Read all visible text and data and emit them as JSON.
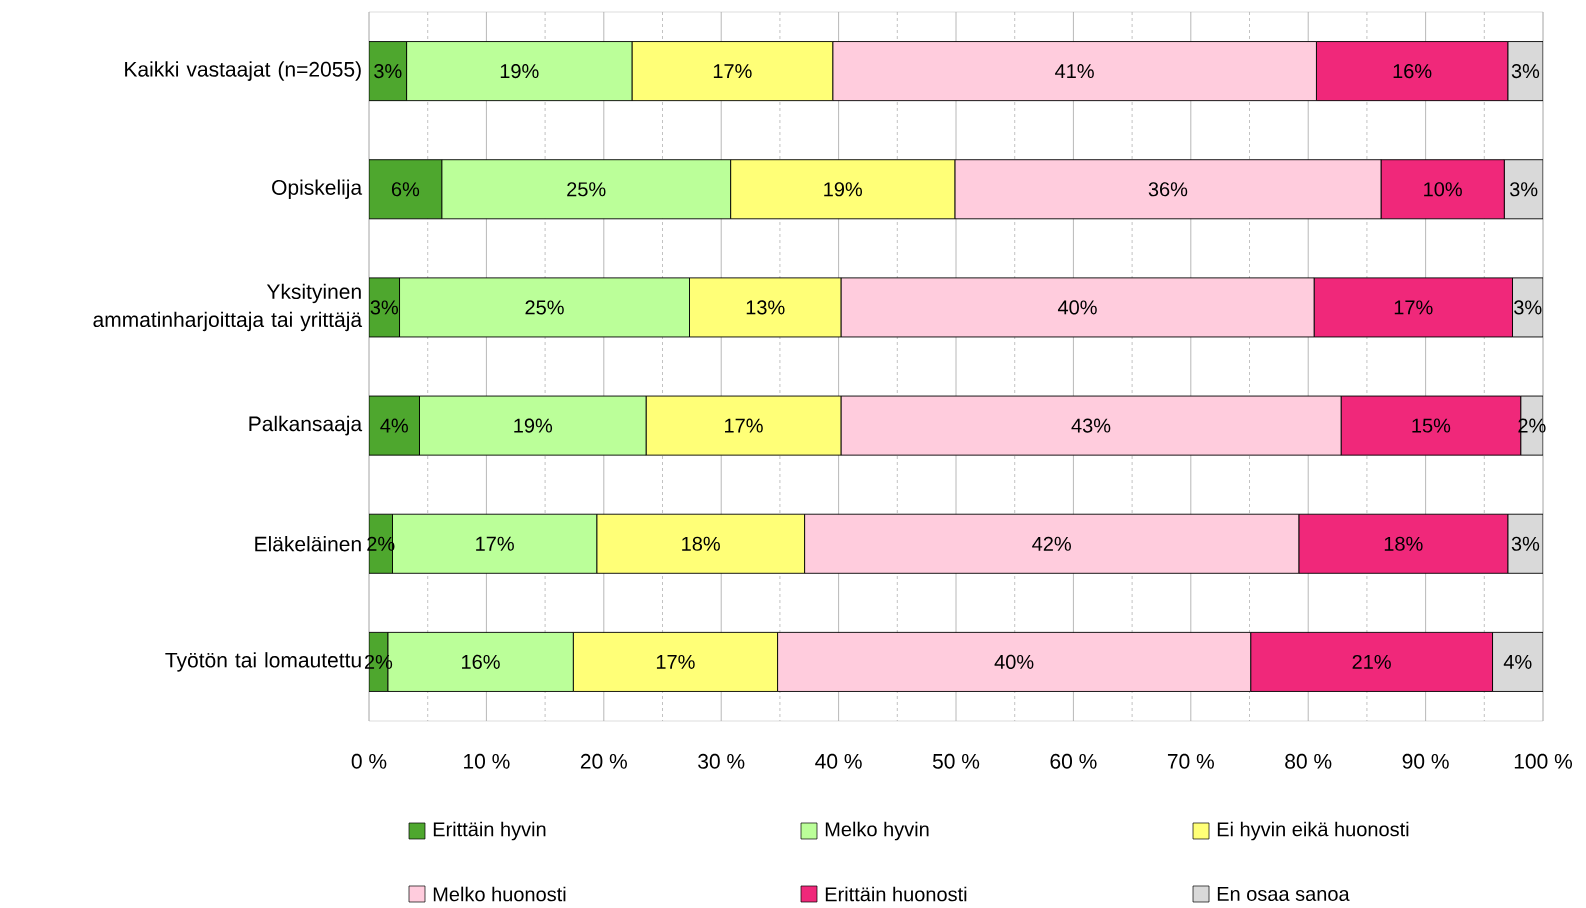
{
  "chart_data": {
    "type": "bar",
    "orientation": "horizontal",
    "stacked": true,
    "categories": [
      "Kaikki vastaajat (n=2055)",
      "Opiskelija",
      "Yksityinen ammatinharjoittaja tai yrittäjä",
      "Palkansaaja",
      "Eläkeläinen",
      "Työtön tai lomautettu"
    ],
    "series": [
      {
        "name": "Erittäin hyvin",
        "color": "#4ea72e",
        "values": [
          3.2,
          6.2,
          2.6,
          4.3,
          2.0,
          1.6
        ],
        "value_labels": [
          "3%",
          "6%",
          "3%",
          "4%",
          "2%",
          "2%"
        ]
      },
      {
        "name": "Melko hyvin",
        "color": "#bbff99",
        "values": [
          19.2,
          24.6,
          24.7,
          19.3,
          17.4,
          15.8
        ],
        "value_labels": [
          "19%",
          "25%",
          "25%",
          "19%",
          "17%",
          "16%"
        ]
      },
      {
        "name": "Ei hyvin eikä huonosti",
        "color": "#ffff77",
        "values": [
          17.1,
          19.1,
          12.9,
          16.6,
          17.7,
          17.4
        ],
        "value_labels": [
          "17%",
          "19%",
          "13%",
          "17%",
          "18%",
          "17%"
        ]
      },
      {
        "name": "Melko huonosti",
        "color": "#ffccdd",
        "values": [
          41.2,
          36.3,
          40.3,
          42.6,
          42.1,
          40.3
        ],
        "value_labels": [
          "41%",
          "36%",
          "40%",
          "43%",
          "42%",
          "40%"
        ]
      },
      {
        "name": "Erittäin huonosti",
        "color": "#f0287a",
        "values": [
          16.3,
          10.5,
          16.9,
          15.3,
          17.8,
          20.6
        ],
        "value_labels": [
          "16%",
          "10%",
          "17%",
          "15%",
          "18%",
          "21%"
        ]
      },
      {
        "name": "En osaa sanoa",
        "color": "#d9d9d9",
        "values": [
          3.0,
          3.3,
          2.6,
          1.9,
          3.0,
          4.3
        ],
        "value_labels": [
          "3%",
          "3%",
          "3%",
          "2%",
          "3%",
          "4%"
        ]
      }
    ],
    "xlim": [
      0,
      100
    ],
    "xticks": [
      {
        "value": 0,
        "label": "0 %"
      },
      {
        "value": 5,
        "label": null
      },
      {
        "value": 10,
        "label": "10 %"
      },
      {
        "value": 15,
        "label": null
      },
      {
        "value": 20,
        "label": "20 %"
      },
      {
        "value": 25,
        "label": null
      },
      {
        "value": 30,
        "label": "30 %"
      },
      {
        "value": 35,
        "label": null
      },
      {
        "value": 40,
        "label": "40 %"
      },
      {
        "value": 45,
        "label": null
      },
      {
        "value": 50,
        "label": "50 %"
      },
      {
        "value": 55,
        "label": null
      },
      {
        "value": 60,
        "label": "60 %"
      },
      {
        "value": 65,
        "label": null
      },
      {
        "value": 70,
        "label": "70 %"
      },
      {
        "value": 75,
        "label": null
      },
      {
        "value": 80,
        "label": "80 %"
      },
      {
        "value": 85,
        "label": null
      },
      {
        "value": 90,
        "label": "90 %"
      },
      {
        "value": 95,
        "label": null
      },
      {
        "value": 100,
        "label": "100 %"
      }
    ],
    "grid": "x",
    "legend": "bottom"
  }
}
